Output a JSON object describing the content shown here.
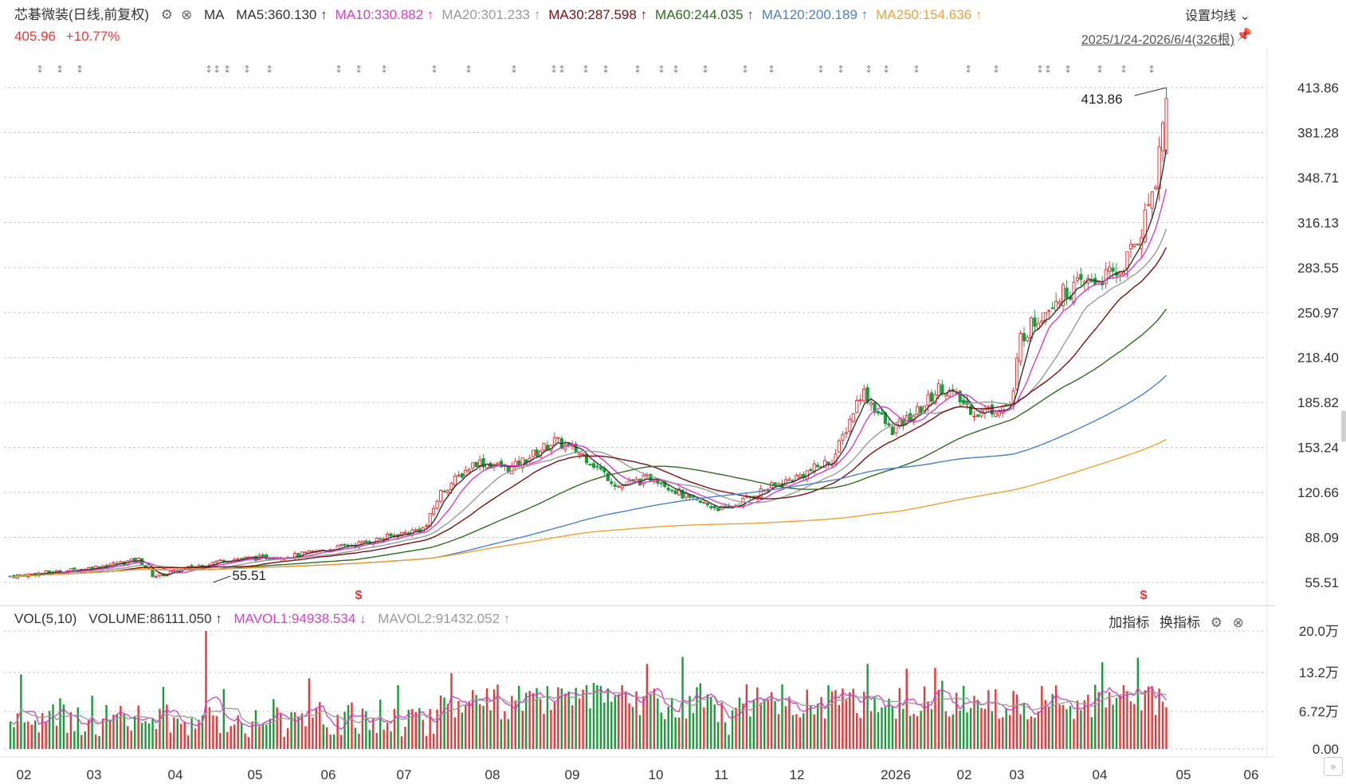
{
  "header": {
    "stock_label": "芯碁微装(日线,前复权)",
    "ma_label": "MA",
    "ma_items": [
      {
        "text": "MA5:360.130 ↑",
        "color": "#333333"
      },
      {
        "text": "MA10:330.882 ↑",
        "color": "#d63cc8"
      },
      {
        "text": "MA20:301.233 ↑",
        "color": "#9a9a9a"
      },
      {
        "text": "MA30:287.598 ↑",
        "color": "#7a1010"
      },
      {
        "text": "MA60:244.035 ↑",
        "color": "#2c6e1e"
      },
      {
        "text": "MA120:200.189 ↑",
        "color": "#4a80d0"
      },
      {
        "text": "MA250:154.636 ↑",
        "color": "#f0a030"
      }
    ],
    "price": "405.96",
    "change": "+10.77%",
    "settings_label": "设置均线",
    "date_range": "2025/1/24-2026/6/4(326根)"
  },
  "volume_header": {
    "title": "VOL(5,10)",
    "volume": "VOLUME:86111.050 ↑",
    "mavol1": "MAVOL1:94938.534 ↓",
    "mavol2": "MAVOL2:91432.052 ↑",
    "add_indicator": "加指标",
    "switch_indicator": "换指标"
  },
  "chart_data": {
    "type": "candlestick",
    "price_axis": {
      "ticks": [
        "413.86",
        "381.28",
        "348.71",
        "316.13",
        "283.55",
        "250.97",
        "218.40",
        "185.82",
        "153.24",
        "120.66",
        "88.09",
        "55.51"
      ],
      "range": [
        55.51,
        413.86
      ]
    },
    "volume_axis": {
      "ticks": [
        "20.0万",
        "13.2万",
        "6.72万",
        "0.00"
      ],
      "range": [
        0,
        200000
      ]
    },
    "x_ticks": [
      "02",
      "03",
      "04",
      "05",
      "06",
      "07",
      "08",
      "09",
      "10",
      "11",
      "12",
      "2026",
      "02",
      "03",
      "04",
      "05",
      "06"
    ],
    "annotations": {
      "high": "413.86",
      "low": "55.51"
    },
    "close_anchors": [
      {
        "month": 0,
        "close": 60
      },
      {
        "month": 1,
        "close": 65
      },
      {
        "month": 1.8,
        "close": 72
      },
      {
        "month": 2,
        "close": 60
      },
      {
        "month": 3,
        "close": 72
      },
      {
        "month": 4,
        "close": 75
      },
      {
        "month": 5,
        "close": 85
      },
      {
        "month": 5.8,
        "close": 95
      },
      {
        "month": 6,
        "close": 120
      },
      {
        "month": 6.5,
        "close": 143
      },
      {
        "month": 7,
        "close": 138
      },
      {
        "month": 7.6,
        "close": 158
      },
      {
        "month": 8,
        "close": 148
      },
      {
        "month": 8.5,
        "close": 125
      },
      {
        "month": 9,
        "close": 132
      },
      {
        "month": 9.5,
        "close": 115
      },
      {
        "month": 10,
        "close": 108
      },
      {
        "month": 10.5,
        "close": 122
      },
      {
        "month": 11,
        "close": 132
      },
      {
        "month": 11.5,
        "close": 145
      },
      {
        "month": 11.9,
        "close": 195
      },
      {
        "month": 12.3,
        "close": 165
      },
      {
        "month": 12.7,
        "close": 180
      },
      {
        "month": 13,
        "close": 198
      },
      {
        "month": 13.5,
        "close": 178
      },
      {
        "month": 14,
        "close": 185
      },
      {
        "month": 14.1,
        "close": 232
      },
      {
        "month": 14.6,
        "close": 262
      },
      {
        "month": 15,
        "close": 272
      },
      {
        "month": 15.5,
        "close": 280
      },
      {
        "month": 15.8,
        "close": 310
      },
      {
        "month": 16,
        "close": 350
      },
      {
        "month": 16.15,
        "close": 406
      }
    ],
    "ma_end_values": {
      "MA5": 360.13,
      "MA10": 330.882,
      "MA20": 301.233,
      "MA30": 287.598,
      "MA60": 244.035,
      "MA120": 200.189,
      "MA250": 154.636
    },
    "colors": {
      "up": "#e23a3a",
      "down": "#1a9a3a",
      "grid": "#cfcfcf"
    }
  }
}
